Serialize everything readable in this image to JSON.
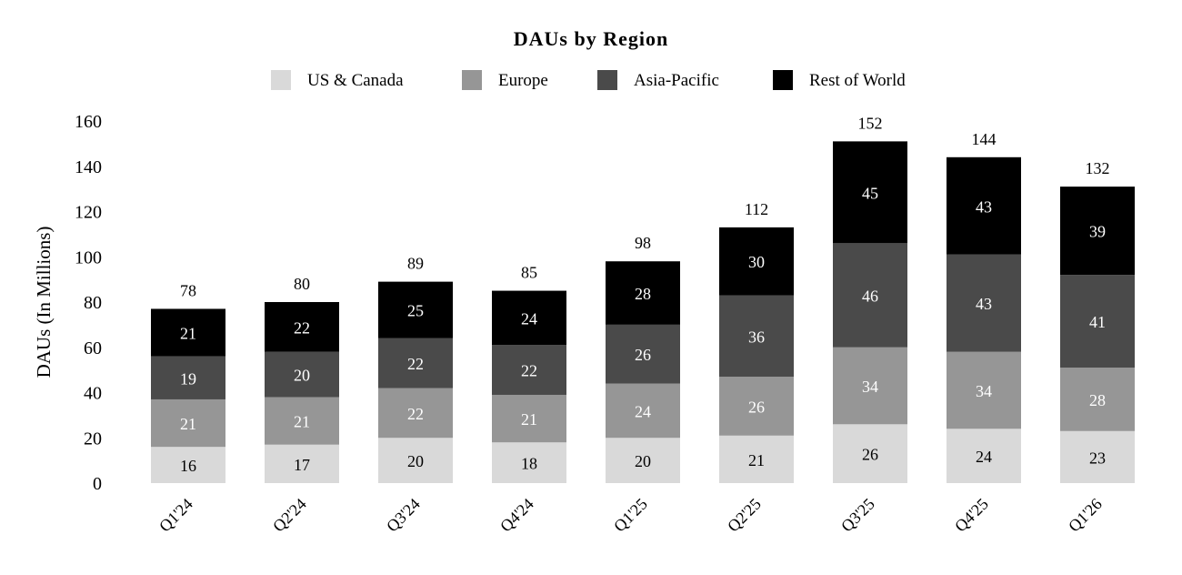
{
  "chart_data": {
    "type": "bar",
    "stacked": true,
    "title": "DAUs by Region",
    "ylabel": "DAUs (In Millions)",
    "xlabel": "",
    "ylim": [
      0,
      160
    ],
    "yticks": [
      0,
      20,
      40,
      60,
      80,
      100,
      120,
      140,
      160
    ],
    "grid": false,
    "legend_position": "top",
    "categories": [
      "Q1'24",
      "Q2'24",
      "Q3'24",
      "Q4'24",
      "Q1'25",
      "Q2'25",
      "Q3'25",
      "Q4'25",
      "Q1'26"
    ],
    "series": [
      {
        "name": "US & Canada",
        "color": "#d9d9d9",
        "label_color": "#000000",
        "values": [
          16,
          17,
          20,
          18,
          20,
          21,
          26,
          24,
          23
        ]
      },
      {
        "name": "Europe",
        "color": "#969696",
        "label_color": "#ffffff",
        "values": [
          21,
          21,
          22,
          21,
          24,
          26,
          34,
          34,
          28
        ]
      },
      {
        "name": "Asia-Pacific",
        "color": "#4a4a4a",
        "label_color": "#ffffff",
        "values": [
          19,
          20,
          22,
          22,
          26,
          36,
          46,
          43,
          41
        ]
      },
      {
        "name": "Rest of World",
        "color": "#000000",
        "label_color": "#ffffff",
        "values": [
          21,
          22,
          25,
          24,
          28,
          30,
          45,
          43,
          39
        ]
      }
    ],
    "totals": [
      78,
      80,
      89,
      85,
      98,
      112,
      152,
      144,
      132
    ]
  }
}
